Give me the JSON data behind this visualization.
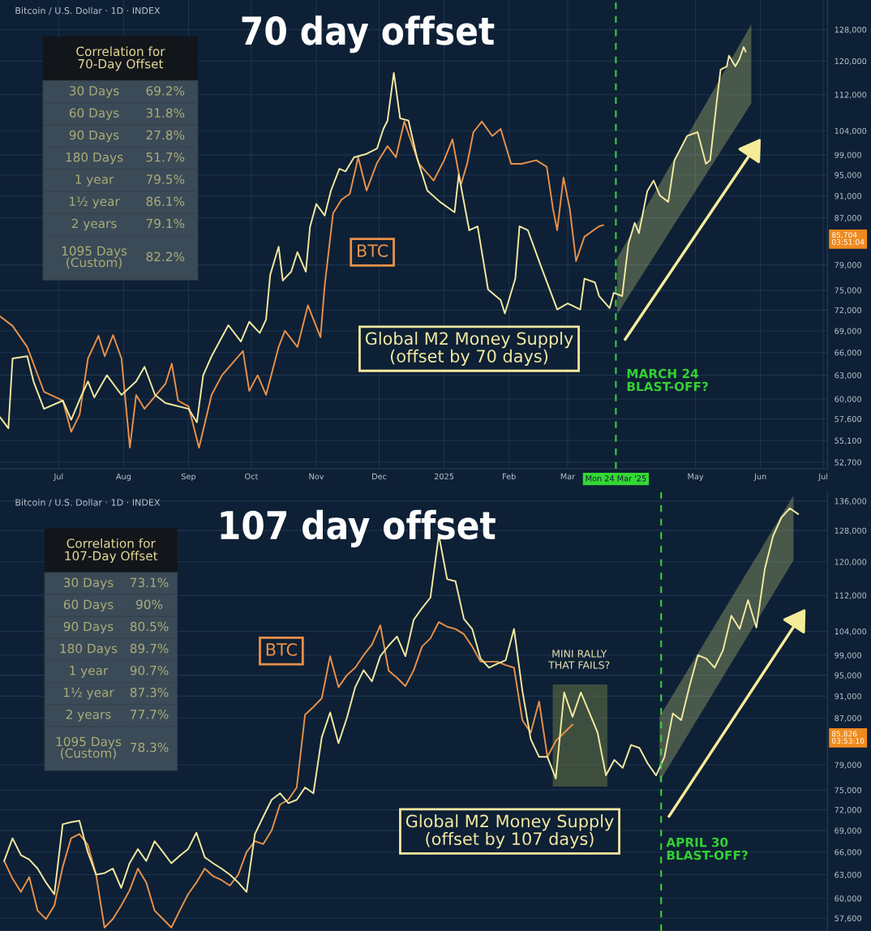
{
  "chart_data": [
    {
      "type": "line",
      "title": "70 day offset",
      "subtitle": "Bitcoin / U.S. Dollar · 1D · INDEX",
      "log": "y",
      "grid": true,
      "legend": false,
      "marker": "none",
      "line_style": "solid",
      "xlim": [
        "2024-06-03",
        "2025-07-03"
      ],
      "xticks": [
        {
          "value": "2024-07-01",
          "label": "Jul"
        },
        {
          "value": "2024-08-01",
          "label": "Aug"
        },
        {
          "value": "2024-09-01",
          "label": "Sep"
        },
        {
          "value": "2024-10-01",
          "label": "Oct"
        },
        {
          "value": "2024-11-01",
          "label": "Nov"
        },
        {
          "value": "2024-12-01",
          "label": "Dec"
        },
        {
          "value": "2025-01-01",
          "label": "2025"
        },
        {
          "value": "2025-02-01",
          "label": "Feb"
        },
        {
          "value": "2025-03-01",
          "label": "Mar"
        },
        {
          "value": "2025-05-01",
          "label": "May"
        },
        {
          "value": "2025-06-01",
          "label": "Jun"
        },
        {
          "value": "2025-07-01",
          "label": "Jul"
        }
      ],
      "ylim": [
        52000,
        136000
      ],
      "yticks": [
        {
          "value": 52700,
          "label": "52,700"
        },
        {
          "value": 55100,
          "label": "55,100"
        },
        {
          "value": 57600,
          "label": "57,600"
        },
        {
          "value": 60000,
          "label": "60,000"
        },
        {
          "value": 63000,
          "label": "63,000"
        },
        {
          "value": 66000,
          "label": "66,000"
        },
        {
          "value": 69000,
          "label": "69,000"
        },
        {
          "value": 72000,
          "label": "72,000"
        },
        {
          "value": 75000,
          "label": "75,000"
        },
        {
          "value": 79000,
          "label": "79,000"
        },
        {
          "value": 87000,
          "label": "87,000"
        },
        {
          "value": 91000,
          "label": "91,000"
        },
        {
          "value": 95000,
          "label": "95,000"
        },
        {
          "value": 99000,
          "label": "99,000"
        },
        {
          "value": 104000,
          "label": "104,000"
        },
        {
          "value": 112000,
          "label": "112,000"
        },
        {
          "value": 120000,
          "label": "120,000"
        },
        {
          "value": 128000,
          "label": "128,000"
        }
      ],
      "series": [
        {
          "name": "BTC",
          "color": "#e8914a",
          "x": [
            "2024-06-03",
            "2024-06-09",
            "2024-06-16",
            "2024-06-24",
            "2024-07-03",
            "2024-07-07",
            "2024-07-11",
            "2024-07-15",
            "2024-07-20",
            "2024-07-23",
            "2024-07-27",
            "2024-07-31",
            "2024-08-04",
            "2024-08-07",
            "2024-08-11",
            "2024-08-21",
            "2024-08-24",
            "2024-08-27",
            "2024-09-01",
            "2024-09-06",
            "2024-09-12",
            "2024-09-17",
            "2024-09-27",
            "2024-09-30",
            "2024-10-04",
            "2024-10-08",
            "2024-10-14",
            "2024-10-17",
            "2024-10-23",
            "2024-10-28",
            "2024-11-03",
            "2024-11-05",
            "2024-11-09",
            "2024-11-13",
            "2024-11-17",
            "2024-11-21",
            "2024-11-25",
            "2024-11-30",
            "2024-12-05",
            "2024-12-09",
            "2024-12-13",
            "2024-12-20",
            "2024-12-27",
            "2025-01-01",
            "2025-01-05",
            "2025-01-09",
            "2025-01-12",
            "2025-01-15",
            "2025-01-19",
            "2025-01-24",
            "2025-01-28",
            "2025-02-02",
            "2025-02-07",
            "2025-02-14",
            "2025-02-19",
            "2025-02-22",
            "2025-02-24",
            "2025-02-27",
            "2025-03-02",
            "2025-03-05",
            "2025-03-09",
            "2025-03-16",
            "2025-03-18"
          ],
          "values": [
            71100,
            69700,
            66750,
            60900,
            59800,
            56100,
            58100,
            65200,
            68300,
            65500,
            68400,
            65200,
            54300,
            60500,
            58800,
            61900,
            64500,
            59800,
            59100,
            54300,
            60500,
            63000,
            66200,
            61000,
            63000,
            60500,
            66750,
            69000,
            66750,
            72700,
            68100,
            75700,
            87800,
            90300,
            91400,
            98500,
            92000,
            97400,
            100800,
            98500,
            106000,
            97200,
            93900,
            97900,
            102200,
            93100,
            97200,
            103700,
            106000,
            102900,
            104400,
            97200,
            97200,
            97900,
            96600,
            88600,
            84800,
            94500,
            88600,
            79600,
            83700,
            85500,
            85704
          ]
        },
        {
          "name": "Global M2 Money Supply\n(offset by 70 days)",
          "color": "#f3e9a0",
          "x": [
            "2024-06-03",
            "2024-06-07",
            "2024-06-09",
            "2024-06-16",
            "2024-06-19",
            "2024-06-24",
            "2024-07-03",
            "2024-07-07",
            "2024-07-12",
            "2024-07-15",
            "2024-07-18",
            "2024-07-24",
            "2024-07-31",
            "2024-08-07",
            "2024-08-11",
            "2024-08-16",
            "2024-08-21",
            "2024-09-01",
            "2024-09-05",
            "2024-09-08",
            "2024-09-12",
            "2024-09-20",
            "2024-09-26",
            "2024-09-30",
            "2024-10-05",
            "2024-10-08",
            "2024-10-10",
            "2024-10-14",
            "2024-10-16",
            "2024-10-20",
            "2024-10-23",
            "2024-10-27",
            "2024-10-29",
            "2024-11-01",
            "2024-11-05",
            "2024-11-08",
            "2024-11-12",
            "2024-11-15",
            "2024-11-19",
            "2024-11-25",
            "2024-11-30",
            "2024-12-03",
            "2024-12-05",
            "2024-12-08",
            "2024-12-11",
            "2024-12-15",
            "2024-12-19",
            "2024-12-24",
            "2024-12-30",
            "2025-01-06",
            "2025-01-08",
            "2025-01-13",
            "2025-01-17",
            "2025-01-22",
            "2025-01-28",
            "2025-01-30",
            "2025-02-04",
            "2025-02-06",
            "2025-02-10",
            "2025-02-16",
            "2025-02-24",
            "2025-03-01",
            "2025-03-07",
            "2025-03-09",
            "2025-03-14",
            "2025-03-16",
            "2025-03-21",
            "2025-03-23",
            "2025-03-27",
            "2025-03-30",
            "2025-04-02",
            "2025-04-04",
            "2025-04-08",
            "2025-04-11",
            "2025-04-14",
            "2025-04-18",
            "2025-04-21",
            "2025-04-27",
            "2025-05-02",
            "2025-05-06",
            "2025-05-08",
            "2025-05-11",
            "2025-05-13",
            "2025-05-16",
            "2025-05-17",
            "2025-05-20",
            "2025-05-22",
            "2025-05-24",
            "2025-05-25"
          ],
          "values": [
            57800,
            56500,
            65200,
            65500,
            62200,
            58800,
            59800,
            57500,
            60500,
            62200,
            60200,
            63000,
            60500,
            62200,
            64100,
            60500,
            59500,
            58800,
            57200,
            63000,
            65500,
            69800,
            67500,
            70300,
            68700,
            70600,
            77400,
            82000,
            76500,
            77900,
            81100,
            77900,
            85400,
            89500,
            87400,
            92000,
            96200,
            95700,
            98500,
            99200,
            100300,
            104400,
            106200,
            117100,
            106700,
            106200,
            98500,
            92000,
            89900,
            88000,
            95100,
            84800,
            85500,
            75100,
            73500,
            71500,
            76800,
            85500,
            84800,
            79000,
            72100,
            73000,
            72100,
            76800,
            76200,
            74100,
            72300,
            74600,
            74100,
            82500,
            86100,
            84300,
            91900,
            93900,
            91100,
            89900,
            97900,
            102900,
            103700,
            97200,
            97900,
            109800,
            117900,
            118700,
            121300,
            118700,
            120500,
            123500,
            122300
          ]
        }
      ],
      "ref_lines": [
        {
          "axis": "x",
          "value": "2025-03-24",
          "label": "Mon 24 Mar '25",
          "color": "#3ccf3c",
          "line_style": "dashed"
        }
      ],
      "annotations": [
        "Correlation for\n70-Day Offset",
        "30 Days",
        "69.2%",
        "60 Days",
        "31.8%",
        "90 Days",
        "27.8%",
        "180 Days",
        "51.7%",
        "1 year",
        "79.5%",
        "1½ year",
        "86.1%",
        "2 years",
        "79.1%",
        "1095 Days\n(Custom)",
        "82.2%",
        "MARCH 24\nBLAST-OFF?",
        "85,704\n03:51:04"
      ]
    },
    {
      "type": "line",
      "title": "107 day offset",
      "subtitle": "Bitcoin / U.S. Dollar · 1D · INDEX",
      "log": "y",
      "grid": "y",
      "legend": false,
      "marker": "none",
      "line_style": "solid",
      "tick_labels": "y",
      "categories": [
        null,
        null,
        null,
        null,
        null,
        null,
        null,
        null,
        null,
        null,
        null,
        null,
        null,
        null,
        null,
        null,
        null,
        null,
        null,
        null,
        null,
        null,
        null,
        null,
        null,
        null,
        null,
        null,
        null,
        null,
        null,
        null,
        null,
        null,
        null,
        null,
        null,
        null,
        null,
        null,
        null,
        null,
        null,
        null,
        null,
        null,
        null,
        null,
        null,
        null,
        null,
        null,
        null,
        null,
        null,
        null,
        null,
        null,
        null,
        null,
        null,
        null,
        null,
        null,
        null,
        null,
        null,
        null,
        null,
        null,
        null,
        null,
        null,
        null,
        null,
        null,
        null,
        null,
        null,
        null,
        null,
        null,
        null,
        null,
        null,
        null,
        null,
        null,
        null,
        null,
        null,
        null,
        null,
        null,
        null,
        null,
        null,
        null,
        null
      ],
      "ylim": [
        56100,
        138500
      ],
      "yticks": [
        {
          "value": 57600,
          "label": "57,600"
        },
        {
          "value": 60000,
          "label": "60,000"
        },
        {
          "value": 63000,
          "label": "63,000"
        },
        {
          "value": 66000,
          "label": "66,000"
        },
        {
          "value": 69000,
          "label": "69,000"
        },
        {
          "value": 72000,
          "label": "72,000"
        },
        {
          "value": 75000,
          "label": "75,000"
        },
        {
          "value": 79000,
          "label": "79,000"
        },
        {
          "value": 87000,
          "label": "87,000"
        },
        {
          "value": 91000,
          "label": "91,000"
        },
        {
          "value": 95000,
          "label": "95,000"
        },
        {
          "value": 99000,
          "label": "99,000"
        },
        {
          "value": 104000,
          "label": "104,000"
        },
        {
          "value": 112000,
          "label": "112,000"
        },
        {
          "value": 120000,
          "label": "120,000"
        },
        {
          "value": 128000,
          "label": "128,000"
        },
        {
          "value": 136000,
          "label": "136,000"
        }
      ],
      "series": [
        {
          "name": "BTC",
          "color": "#e8914a",
          "values": [
            64800,
            62500,
            60800,
            62700,
            58500,
            57500,
            59100,
            64000,
            67900,
            68500,
            67000,
            63000,
            56500,
            57500,
            59100,
            61000,
            63800,
            62000,
            58500,
            57500,
            56500,
            58500,
            60500,
            62000,
            63800,
            62800,
            62300,
            61600,
            63000,
            66000,
            67500,
            67100,
            69000,
            72800,
            73500,
            75400,
            87600,
            89000,
            90600,
            98800,
            92700,
            95000,
            96500,
            99000,
            101200,
            105300,
            95900,
            94500,
            92900,
            96000,
            100800,
            102500,
            106000,
            105000,
            104500,
            103400,
            100800,
            97700,
            97700,
            97700,
            97000,
            96500,
            86600,
            84400,
            90000,
            80300,
            83000,
            84400,
            85826,
            null,
            null,
            null,
            null,
            null,
            null,
            null,
            null,
            null,
            null,
            null,
            null,
            null,
            null,
            null,
            null,
            null,
            null,
            null,
            null,
            null,
            null,
            null,
            null,
            null,
            null,
            null,
            null,
            null,
            null
          ]
        },
        {
          "name": "Global M2 Money Supply\n(offset by 107 days)",
          "color": "#f3e9a0",
          "values": [
            64800,
            67900,
            65600,
            65000,
            63800,
            62000,
            60500,
            69900,
            70200,
            70400,
            66000,
            63000,
            63200,
            63800,
            61300,
            64500,
            66400,
            64800,
            67500,
            66000,
            64500,
            65500,
            66400,
            68700,
            65300,
            64500,
            63800,
            63000,
            62000,
            60800,
            68500,
            71000,
            73500,
            74500,
            73000,
            73500,
            75400,
            74500,
            83600,
            88000,
            82600,
            87000,
            92700,
            96000,
            93800,
            98800,
            101000,
            102900,
            98800,
            106500,
            109100,
            111500,
            126800,
            115800,
            115300,
            106700,
            104500,
            98300,
            96500,
            97300,
            98000,
            104500,
            92000,
            83300,
            80300,
            80300,
            76800,
            91700,
            87200,
            91700,
            88000,
            84400,
            77300,
            79800,
            78500,
            82300,
            81800,
            79200,
            77300,
            80300,
            87800,
            86600,
            92900,
            99000,
            98300,
            96500,
            100000,
            107400,
            104500,
            110900,
            104800,
            118200,
            126600,
            131500,
            134000,
            132400,
            null,
            null,
            null
          ]
        }
      ],
      "annotations": [
        "Correlation for\n107-Day Offset",
        "30 Days",
        "73.1%",
        "60 Days",
        "90%",
        "90 Days",
        "80.5%",
        "180 Days",
        "89.7%",
        "1 year",
        "90.7%",
        "1½ year",
        "87.3%",
        "2 years",
        "77.7%",
        "1095 Days\n(Custom)",
        "78.3%",
        "MINI RALLY\nTHAT FAILS?",
        "APRIL 30\nBLAST-OFF?",
        "85,826\n03:53:10"
      ]
    }
  ]
}
